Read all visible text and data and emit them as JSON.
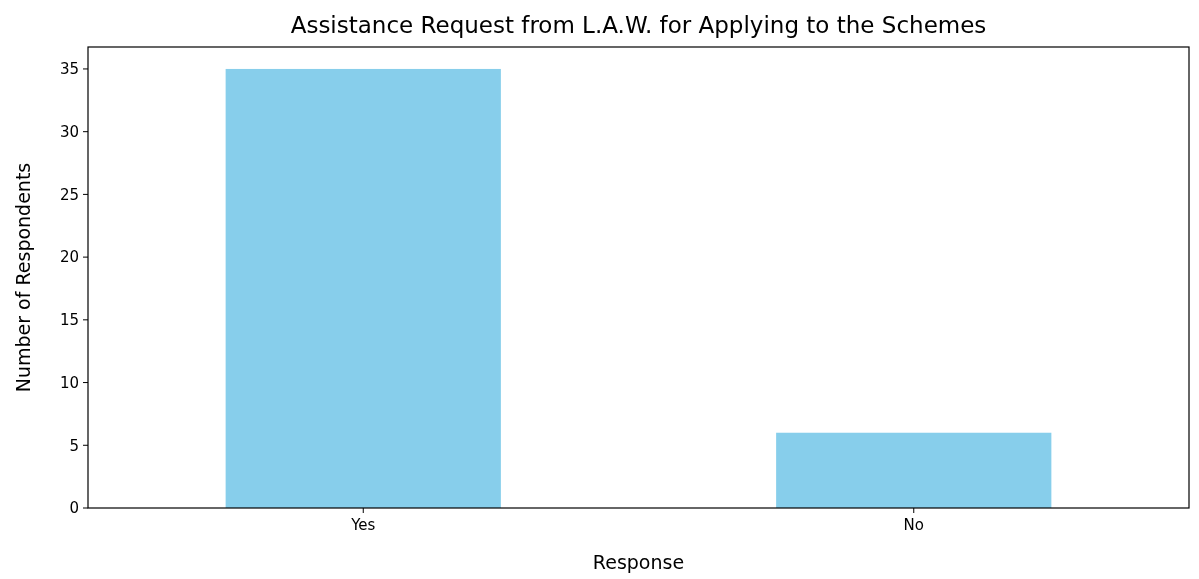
{
  "chart_data": {
    "type": "bar",
    "title": "Assistance Request from L.A.W. for Applying to the Schemes",
    "xlabel": "Response",
    "ylabel": "Number of Respondents",
    "categories": [
      "Yes",
      "No"
    ],
    "values": [
      35,
      6
    ],
    "color": "#87ceeb",
    "ylim": [
      0,
      36.75
    ],
    "yticks": [
      0,
      5,
      10,
      15,
      20,
      25,
      30,
      35
    ]
  }
}
